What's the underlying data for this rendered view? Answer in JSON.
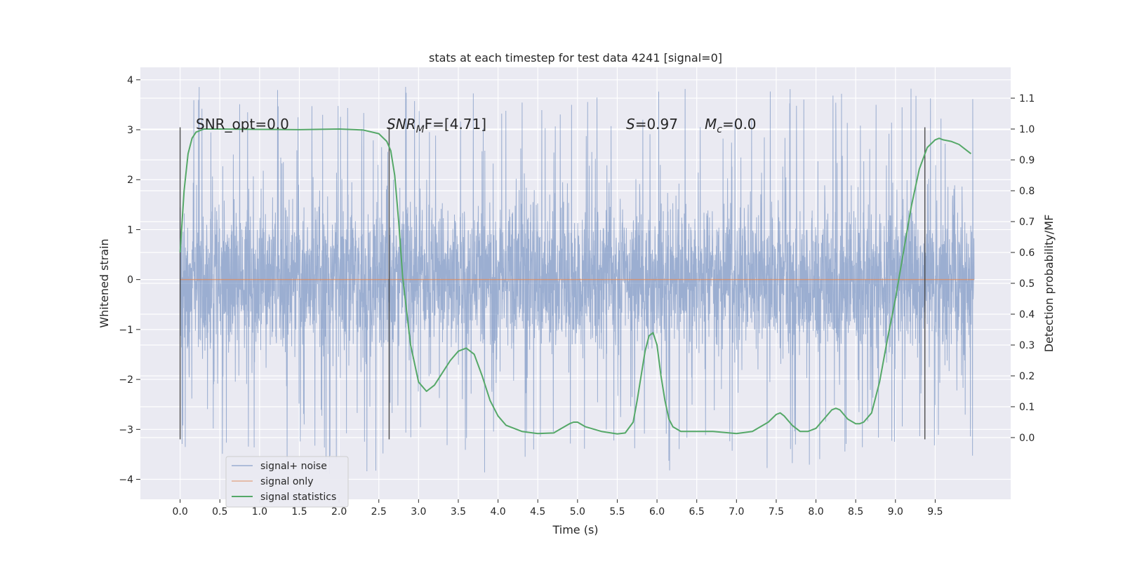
{
  "chart_data": {
    "type": "line",
    "title": "stats at each timestep for test data 4241 [signal=0]",
    "xlabel": "Time (s)",
    "ylabel_left": "Whitened strain",
    "ylabel_right": "Detection probability/MF",
    "xlim": [
      -0.5,
      10.45
    ],
    "ylim_left": [
      -4.4,
      4.25
    ],
    "ylim_right": [
      -0.2,
      1.2
    ],
    "x_ticks": [
      0.0,
      0.5,
      1.0,
      1.5,
      2.0,
      2.5,
      3.0,
      3.5,
      4.0,
      4.5,
      5.0,
      5.5,
      6.0,
      6.5,
      7.0,
      7.5,
      8.0,
      8.5,
      9.0,
      9.5
    ],
    "x_tick_labels": [
      "0.0",
      "0.5",
      "1.0",
      "1.5",
      "2.0",
      "2.5",
      "3.0",
      "3.5",
      "4.0",
      "4.5",
      "5.0",
      "5.5",
      "6.0",
      "6.5",
      "7.0",
      "7.5",
      "8.0",
      "8.5",
      "9.0",
      "9.5"
    ],
    "y_left_ticks": [
      -4,
      -3,
      -2,
      -1,
      0,
      1,
      2,
      3,
      4
    ],
    "y_left_tick_labels": [
      "−4",
      "−3",
      "−2",
      "−1",
      "0",
      "1",
      "2",
      "3",
      "4"
    ],
    "y_right_ticks": [
      0.0,
      0.1,
      0.2,
      0.3,
      0.4,
      0.5,
      0.6,
      0.7,
      0.8,
      0.9,
      1.0,
      1.1
    ],
    "y_right_tick_labels": [
      "0.0",
      "0.1",
      "0.2",
      "0.3",
      "0.4",
      "0.5",
      "0.6",
      "0.7",
      "0.8",
      "0.9",
      "1.0",
      "1.1"
    ],
    "grid": true,
    "legend_position": "lower-left",
    "series": [
      {
        "name": "signal+ noise",
        "axis": "left",
        "color": "#4c72b0",
        "x_range": [
          0.0,
          9.99
        ],
        "envelope_typical": [
          -1.8,
          1.8
        ],
        "extremes": [
          -4.05,
          3.9
        ]
      },
      {
        "name": "signal only",
        "axis": "left",
        "color": "#dd8452",
        "x": [
          0.0,
          9.99
        ],
        "y": [
          0.0,
          0.0
        ]
      },
      {
        "name": "signal statistics",
        "axis": "right",
        "color": "#55a868",
        "x": [
          0.0,
          0.05,
          0.1,
          0.15,
          0.2,
          0.3,
          0.5,
          1.0,
          1.5,
          2.0,
          2.3,
          2.5,
          2.6,
          2.65,
          2.7,
          2.75,
          2.8,
          2.9,
          3.0,
          3.1,
          3.2,
          3.3,
          3.4,
          3.5,
          3.6,
          3.7,
          3.8,
          3.9,
          4.0,
          4.1,
          4.2,
          4.3,
          4.5,
          4.7,
          4.8,
          4.9,
          4.95,
          5.0,
          5.1,
          5.3,
          5.5,
          5.6,
          5.7,
          5.75,
          5.8,
          5.85,
          5.9,
          5.95,
          6.0,
          6.05,
          6.1,
          6.15,
          6.2,
          6.3,
          6.5,
          6.7,
          7.0,
          7.2,
          7.4,
          7.5,
          7.55,
          7.6,
          7.7,
          7.8,
          7.9,
          8.0,
          8.1,
          8.2,
          8.25,
          8.3,
          8.4,
          8.5,
          8.55,
          8.6,
          8.7,
          8.8,
          8.9,
          9.0,
          9.1,
          9.2,
          9.3,
          9.4,
          9.5,
          9.55,
          9.6,
          9.7,
          9.8,
          9.9,
          9.95
        ],
        "y": [
          0.6,
          0.8,
          0.92,
          0.97,
          0.99,
          1.0,
          1.0,
          0.999,
          0.998,
          1.0,
          0.997,
          0.985,
          0.96,
          0.93,
          0.85,
          0.7,
          0.52,
          0.3,
          0.18,
          0.15,
          0.17,
          0.21,
          0.25,
          0.28,
          0.29,
          0.27,
          0.2,
          0.12,
          0.07,
          0.04,
          0.03,
          0.02,
          0.013,
          0.015,
          0.03,
          0.045,
          0.05,
          0.05,
          0.035,
          0.02,
          0.012,
          0.015,
          0.05,
          0.12,
          0.2,
          0.28,
          0.33,
          0.34,
          0.3,
          0.2,
          0.12,
          0.06,
          0.035,
          0.02,
          0.02,
          0.02,
          0.013,
          0.02,
          0.05,
          0.075,
          0.08,
          0.07,
          0.04,
          0.02,
          0.02,
          0.03,
          0.06,
          0.09,
          0.095,
          0.09,
          0.06,
          0.045,
          0.045,
          0.05,
          0.08,
          0.18,
          0.32,
          0.45,
          0.6,
          0.75,
          0.87,
          0.94,
          0.965,
          0.97,
          0.965,
          0.96,
          0.95,
          0.93,
          0.92
        ]
      }
    ],
    "vertical_lines": [
      0.0,
      2.63,
      9.37
    ],
    "vertical_line_range": [
      -3.2,
      3.05
    ],
    "annotations": [
      {
        "text": "SNR_opt=0.0",
        "x": 0.2,
        "y": 3.0
      },
      {
        "text_main": "SNR",
        "text_sub": "M",
        "text_rest": "F=[4.71]",
        "x": 2.6,
        "y": 3.0
      },
      {
        "text_main": "S",
        "text_rest": "=0.97",
        "x": 5.6,
        "y": 3.0
      },
      {
        "text_main": "M",
        "text_sub": "c",
        "text_rest": "=0.0",
        "x": 6.6,
        "y": 3.0
      }
    ]
  }
}
